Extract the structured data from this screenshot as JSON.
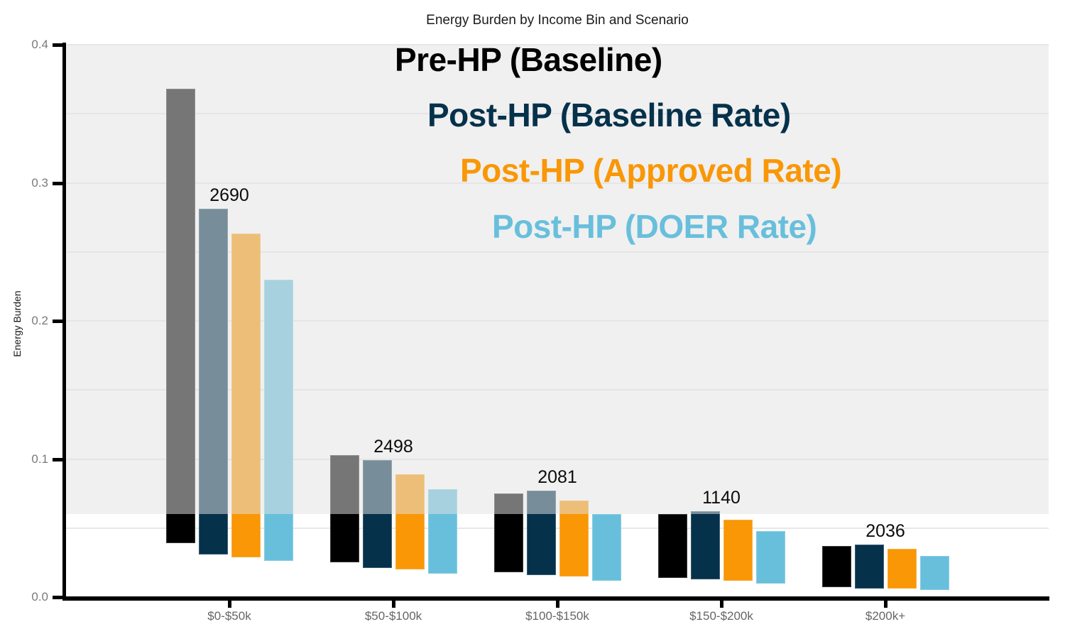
{
  "chart_data": {
    "type": "bar",
    "bar_style": "floating-range",
    "title": "Energy Burden by Income Bin and Scenario",
    "xlabel": "",
    "ylabel": "Energy Burden",
    "ylim": [
      0.0,
      0.4
    ],
    "ytick_labels": [
      "0.0",
      "0.1",
      "0.2",
      "0.3",
      "0.4"
    ],
    "ytick_values": [
      0.0,
      0.1,
      0.2,
      0.3,
      0.4
    ],
    "grid_step": 0.05,
    "grid_on": true,
    "categories": [
      "$0-$50k",
      "$50-$100k",
      "$100-$150k",
      "$150-$200k",
      "$200k+"
    ],
    "series": [
      {
        "name": "Pre-HP (Baseline)",
        "color": "#000000",
        "ranges": [
          [
            0.039,
            0.368
          ],
          [
            0.025,
            0.103
          ],
          [
            0.018,
            0.075
          ],
          [
            0.014,
            0.06
          ],
          [
            0.007,
            0.037
          ]
        ]
      },
      {
        "name": "Post-HP (Baseline Rate)",
        "color": "#05314b",
        "ranges": [
          [
            0.031,
            0.281
          ],
          [
            0.021,
            0.099
          ],
          [
            0.016,
            0.077
          ],
          [
            0.013,
            0.062
          ],
          [
            0.006,
            0.038
          ]
        ]
      },
      {
        "name": "Post-HP (Approved Rate)",
        "color": "#f99706",
        "ranges": [
          [
            0.029,
            0.263
          ],
          [
            0.02,
            0.089
          ],
          [
            0.015,
            0.07
          ],
          [
            0.012,
            0.056
          ],
          [
            0.006,
            0.035
          ]
        ]
      },
      {
        "name": "Post-HP (DOER Rate)",
        "color": "#68bfdc",
        "ranges": [
          [
            0.026,
            0.23
          ],
          [
            0.017,
            0.078
          ],
          [
            0.012,
            0.06
          ],
          [
            0.01,
            0.048
          ],
          [
            0.005,
            0.03
          ]
        ]
      }
    ],
    "count_labels": [
      "2690",
      "2498",
      "2081",
      "1140",
      "2036"
    ],
    "count_label_series": "Post-HP (Baseline Rate)",
    "threshold_band": {
      "from": 0.06,
      "to": 0.4,
      "fill": "rgba(227,227,227,0.52)"
    },
    "legend_position": "upper-center-staircase",
    "colors": {
      "axis": "#000000",
      "grid": "#e8e8e8",
      "tick_text": "#7a7a7a",
      "band_background": "#f0f0f0"
    }
  }
}
